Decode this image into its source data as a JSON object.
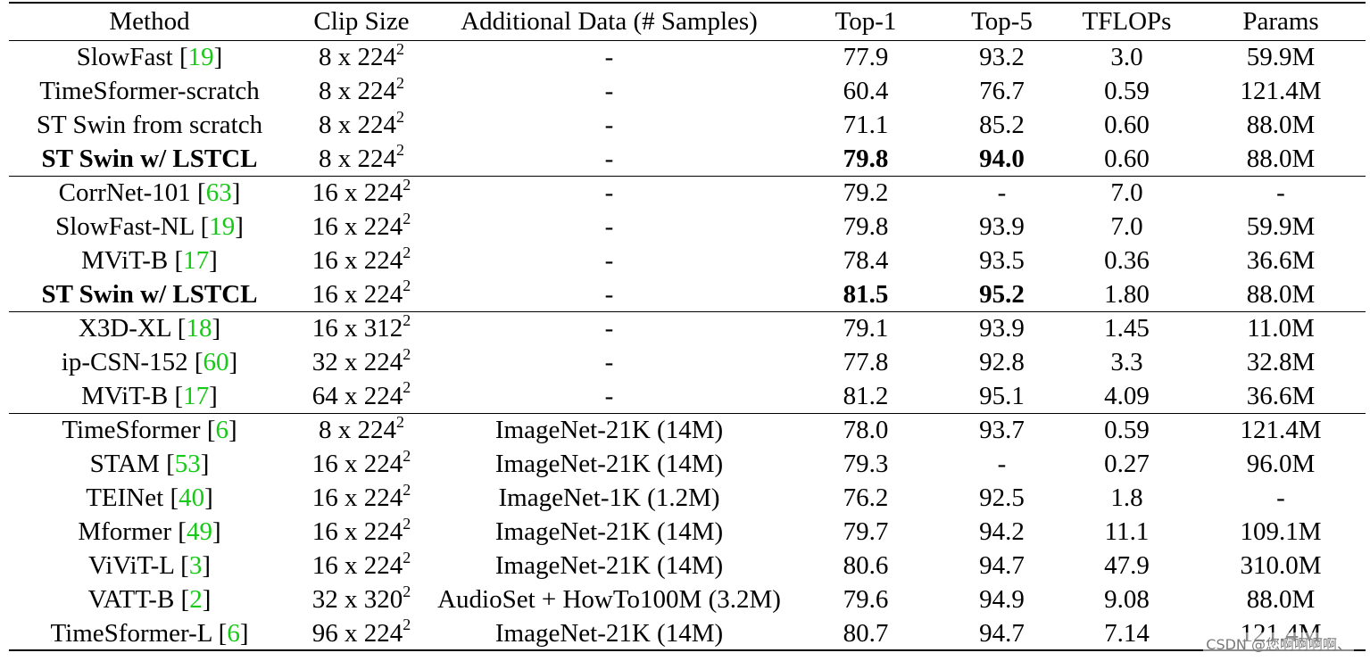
{
  "columns": [
    "Method",
    "Clip Size",
    "Additional Data (# Samples)",
    "Top-1",
    "Top-5",
    "TFLOPs",
    "Params"
  ],
  "groups": [
    [
      {
        "name": "SlowFast",
        "ref": "19",
        "clip": "8 x 224",
        "data": "-",
        "top1": "77.9",
        "top5": "93.2",
        "tflops": "3.0",
        "params": "59.9M"
      },
      {
        "name": "TimeSformer-scratch",
        "ref": "",
        "clip": "8 x 224",
        "data": "-",
        "top1": "60.4",
        "top5": "76.7",
        "tflops": "0.59",
        "params": "121.4M"
      },
      {
        "name": "ST Swin from scratch",
        "ref": "",
        "clip": "8 x 224",
        "data": "-",
        "top1": "71.1",
        "top5": "85.2",
        "tflops": "0.60",
        "params": "88.0M"
      },
      {
        "name": "ST Swin w/ LSTCL",
        "ref": "",
        "bold": true,
        "clip": "8 x 224",
        "data": "-",
        "top1": "79.8",
        "top5": "94.0",
        "tflops": "0.60",
        "params": "88.0M"
      }
    ],
    [
      {
        "name": "CorrNet-101",
        "ref": "63",
        "clip": "16 x 224",
        "data": "-",
        "top1": "79.2",
        "top5": "-",
        "tflops": "7.0",
        "params": "-"
      },
      {
        "name": "SlowFast-NL",
        "ref": "19",
        "clip": "16 x 224",
        "data": "-",
        "top1": "79.8",
        "top5": "93.9",
        "tflops": "7.0",
        "params": "59.9M"
      },
      {
        "name": "MViT-B",
        "ref": "17",
        "clip": "16 x 224",
        "data": "-",
        "top1": "78.4",
        "top5": "93.5",
        "tflops": "0.36",
        "params": "36.6M"
      },
      {
        "name": "ST Swin w/ LSTCL",
        "ref": "",
        "bold": true,
        "clip": "16 x 224",
        "data": "-",
        "top1": "81.5",
        "top5": "95.2",
        "tflops": "1.80",
        "params": "88.0M"
      }
    ],
    [
      {
        "name": "X3D-XL",
        "ref": "18",
        "clip": "16 x 312",
        "data": "-",
        "top1": "79.1",
        "top5": "93.9",
        "tflops": "1.45",
        "params": "11.0M"
      },
      {
        "name": "ip-CSN-152",
        "ref": "60",
        "clip": "32 x 224",
        "data": "-",
        "top1": "77.8",
        "top5": "92.8",
        "tflops": "3.3",
        "params": "32.8M"
      },
      {
        "name": "MViT-B",
        "ref": "17",
        "clip": "64 x 224",
        "data": "-",
        "top1": "81.2",
        "top5": "95.1",
        "tflops": "4.09",
        "params": "36.6M"
      }
    ],
    [
      {
        "name": "TimeSformer",
        "ref": "6",
        "clip": "8 x 224",
        "data": "ImageNet-21K (14M)",
        "top1": "78.0",
        "top5": "93.7",
        "tflops": "0.59",
        "params": "121.4M"
      },
      {
        "name": "STAM",
        "ref": "53",
        "clip": "16 x 224",
        "data": "ImageNet-21K (14M)",
        "top1": "79.3",
        "top5": "-",
        "tflops": "0.27",
        "params": "96.0M"
      },
      {
        "name": "TEINet",
        "ref": "40",
        "clip": "16 x 224",
        "data": "ImageNet-1K (1.2M)",
        "top1": "76.2",
        "top5": "92.5",
        "tflops": "1.8",
        "params": "-"
      },
      {
        "name": "Mformer",
        "ref": "49",
        "clip": "16 x 224",
        "data": "ImageNet-21K (14M)",
        "top1": "79.7",
        "top5": "94.2",
        "tflops": "11.1",
        "params": "109.1M"
      },
      {
        "name": "ViViT-L",
        "ref": "3",
        "clip": "16 x 224",
        "data": "ImageNet-21K (14M)",
        "top1": "80.6",
        "top5": "94.7",
        "tflops": "47.9",
        "params": "310.0M"
      },
      {
        "name": "VATT-B",
        "ref": "2",
        "clip": "32 x 320",
        "data": "AudioSet + HowTo100M (3.2M)",
        "top1": "79.6",
        "top5": "94.9",
        "tflops": "9.08",
        "params": "88.0M"
      },
      {
        "name": "TimeSformer-L",
        "ref": "6",
        "clip": "96 x 224",
        "data": "ImageNet-21K (14M)",
        "top1": "80.7",
        "top5": "94.7",
        "tflops": "7.14",
        "params": "121.4M"
      }
    ]
  ],
  "clip_exponent": "2",
  "watermark": "CSDN @您啊啊啊啊、"
}
